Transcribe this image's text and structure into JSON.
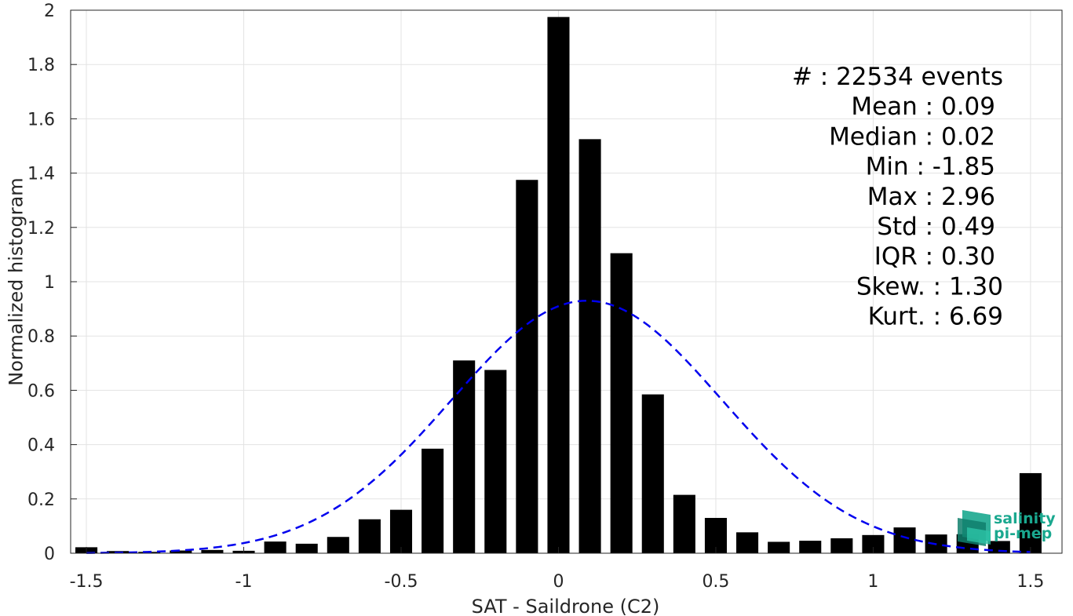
{
  "chart_data": {
    "type": "bar",
    "xlabel": "SAT - Saildrone (C2)",
    "ylabel": "Normalized histogram",
    "xlim": [
      -1.55,
      1.6
    ],
    "ylim": [
      0,
      2
    ],
    "xticks": [
      -1.5,
      -1,
      -0.5,
      0,
      0.5,
      1,
      1.5
    ],
    "xtick_labels": [
      "-1.5",
      "-1",
      "-0.5",
      "0",
      "0.5",
      "1",
      "1.5"
    ],
    "yticks": [
      0,
      0.2,
      0.4,
      0.6,
      0.8,
      1,
      1.2,
      1.4,
      1.6,
      1.8,
      2
    ],
    "ytick_labels": [
      "0",
      "0.2",
      "0.4",
      "0.6",
      "0.8",
      "1",
      "1.2",
      "1.4",
      "1.6",
      "1.8",
      "2"
    ],
    "grid": true,
    "bar_width": 0.07,
    "bar_color": "#000000",
    "x": [
      -1.5,
      -1.4,
      -1.3,
      -1.2,
      -1.1,
      -1.0,
      -0.9,
      -0.8,
      -0.7,
      -0.6,
      -0.5,
      -0.4,
      -0.3,
      -0.2,
      -0.1,
      0.0,
      0.1,
      0.2,
      0.3,
      0.4,
      0.5,
      0.6,
      0.7,
      0.8,
      0.9,
      1.0,
      1.1,
      1.2,
      1.3,
      1.4,
      1.5
    ],
    "values": [
      0.022,
      0.008,
      0.005,
      0.01,
      0.012,
      0.009,
      0.043,
      0.035,
      0.06,
      0.125,
      0.16,
      0.385,
      0.71,
      0.675,
      1.375,
      1.975,
      1.525,
      1.105,
      0.585,
      0.215,
      0.13,
      0.077,
      0.042,
      0.046,
      0.055,
      0.067,
      0.095,
      0.069,
      0.07,
      0.045,
      0.295
    ],
    "fit": {
      "type": "normal",
      "mean": 0.09,
      "std": 0.43,
      "peak": 0.93,
      "color": "#0000ee",
      "style": "dashed"
    },
    "annotations": [
      {
        "label": "#",
        "value": ": 22534 events"
      },
      {
        "label": "Mean",
        "value": ": 0.09"
      },
      {
        "label": "Median",
        "value": ": 0.02"
      },
      {
        "label": "Min",
        "value": ": -1.85"
      },
      {
        "label": "Max",
        "value": ": 2.96"
      },
      {
        "label": "Std",
        "value": ": 0.49"
      },
      {
        "label": "IQR",
        "value": ": 0.30"
      },
      {
        "label": "Skew.",
        "value": ": 1.30"
      },
      {
        "label": "Kurt.",
        "value": ": 6.69"
      }
    ]
  },
  "logo": {
    "line1": "salinity",
    "line2": "pi-mep",
    "color": "#1aa88f"
  }
}
